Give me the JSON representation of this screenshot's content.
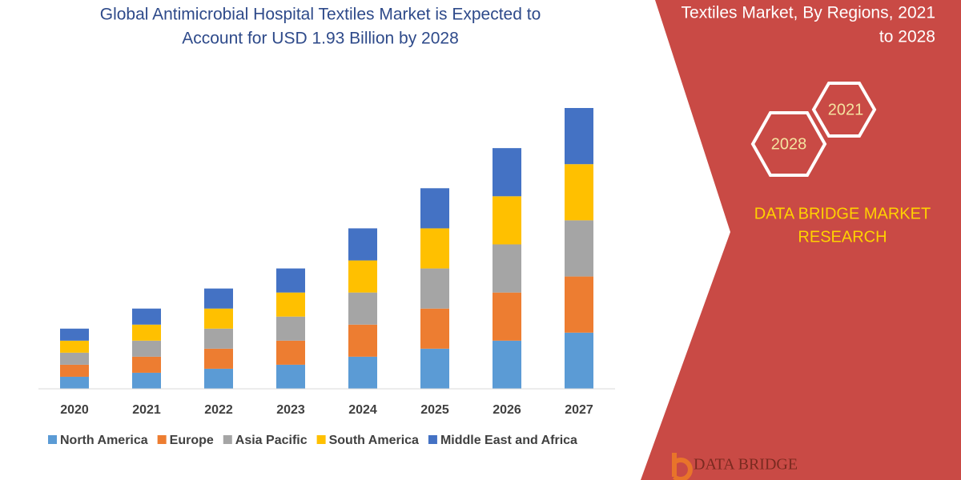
{
  "chart_data": {
    "type": "stacked-bar",
    "title": [
      "Global Antimicrobial Hospital Textiles Market is Expected to",
      "Account for USD 1.93 Billion by 2028"
    ],
    "categories": [
      "2020",
      "2021",
      "2022",
      "2023",
      "2024",
      "2025",
      "2026",
      "2027"
    ],
    "series": [
      {
        "name": "North America",
        "color": "#5b9bd5",
        "values": [
          15,
          20,
          25,
          30,
          40,
          50,
          60,
          70
        ]
      },
      {
        "name": "Europe",
        "color": "#ed7d31",
        "values": [
          15,
          20,
          25,
          30,
          40,
          50,
          60,
          70
        ]
      },
      {
        "name": "Asia Pacific",
        "color": "#a5a5a5",
        "values": [
          15,
          20,
          25,
          30,
          40,
          50,
          60,
          70
        ]
      },
      {
        "name": "South America",
        "color": "#ffc000",
        "values": [
          15,
          20,
          25,
          30,
          40,
          50,
          60,
          70
        ]
      },
      {
        "name": "Middle East and Africa",
        "color": "#4472c4",
        "values": [
          15,
          20,
          25,
          30,
          40,
          50,
          60,
          70
        ]
      }
    ]
  },
  "side_panel": {
    "title": [
      "Textiles Market, By Regions, 2021",
      "to 2028"
    ],
    "badges": [
      "2021",
      "2028"
    ],
    "brand": [
      "DATA BRIDGE MARKET",
      "RESEARCH"
    ],
    "logo": "DATA BRIDGE"
  }
}
